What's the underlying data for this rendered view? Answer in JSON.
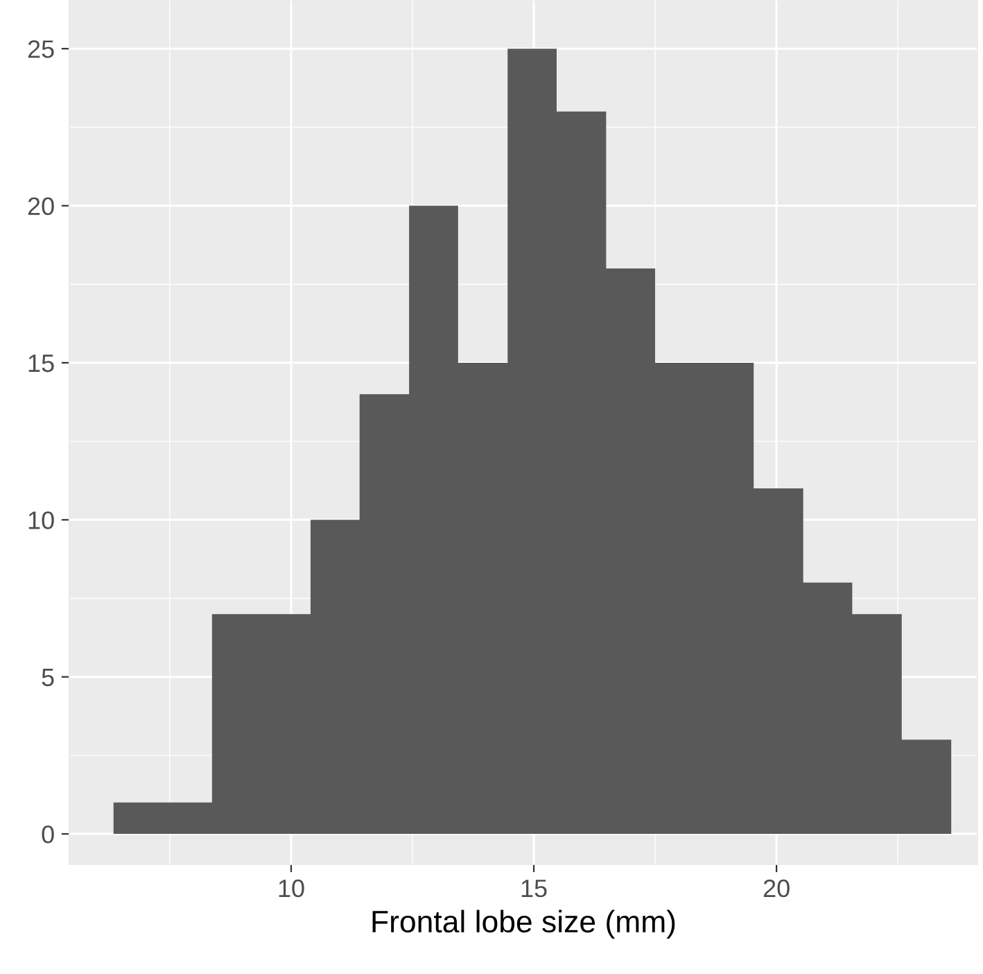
{
  "chart_data": {
    "type": "histogram",
    "xlabel": "Frontal lobe size (mm)",
    "bins": [
      6.34,
      7.35,
      8.37,
      9.38,
      10.4,
      11.41,
      12.43,
      13.44,
      14.46,
      15.47,
      16.49,
      17.5,
      18.52,
      19.53,
      20.55,
      21.56,
      22.58,
      23.6
    ],
    "values": [
      1,
      1,
      7,
      7,
      10,
      14,
      20,
      15,
      25,
      23,
      18,
      15,
      15,
      11,
      8,
      7,
      3
    ],
    "color": "#595959",
    "xlim": [
      5.43,
      24.14
    ],
    "ylim": [
      -0.97,
      26.55
    ],
    "xticks": [
      10,
      15,
      20
    ],
    "yticks": [
      0,
      5,
      10,
      15,
      20,
      25
    ],
    "grid": true
  }
}
